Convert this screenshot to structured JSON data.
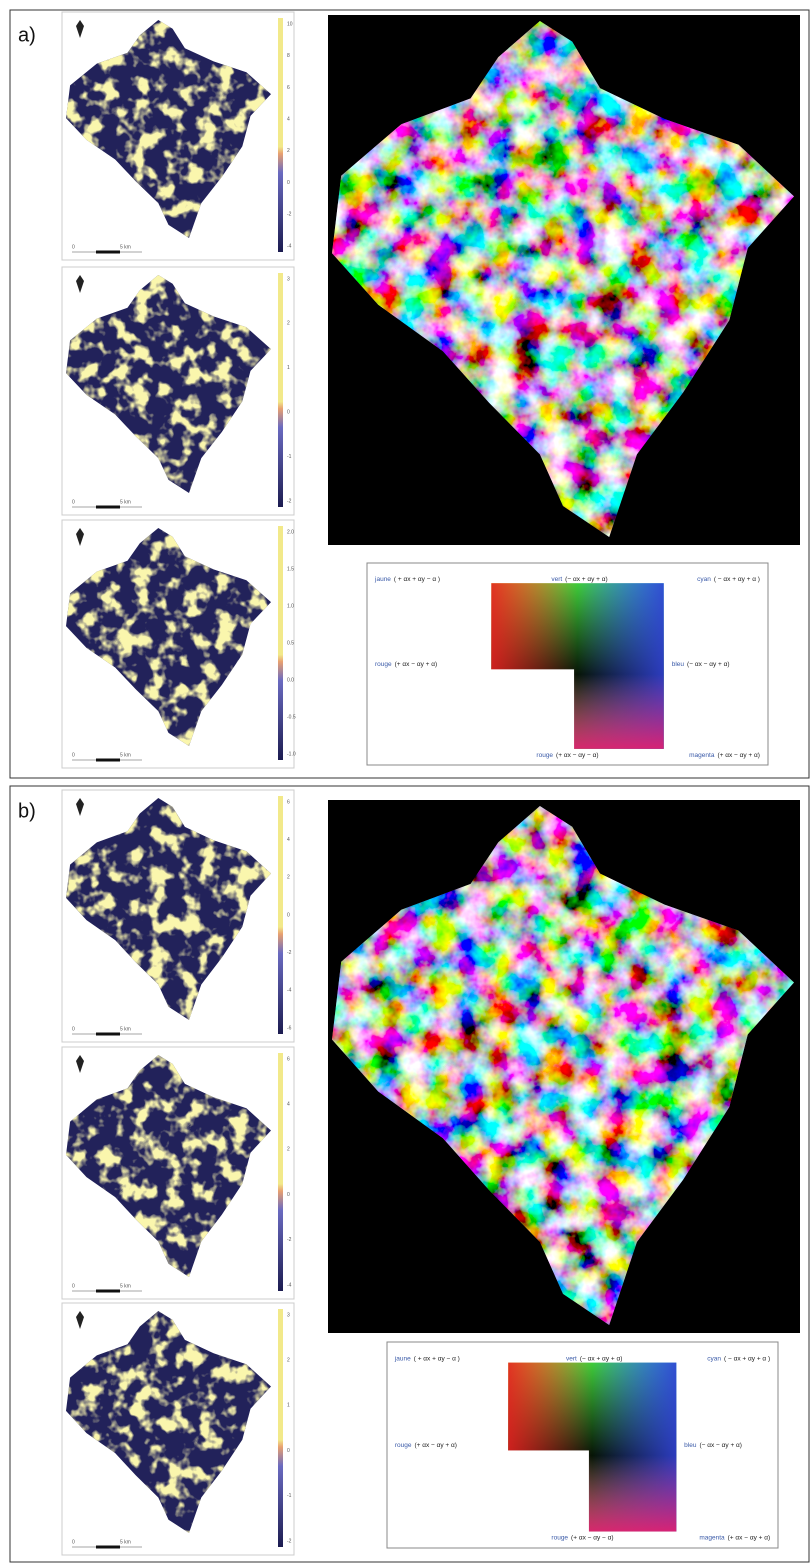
{
  "panels": [
    {
      "label": "a)",
      "maps": [
        {
          "ticks": [
            "10",
            "8",
            "6",
            "4",
            "2",
            "0",
            "-2",
            "-4"
          ],
          "scale": [
            "0",
            "5 km"
          ]
        },
        {
          "ticks": [
            "3",
            "2",
            "1",
            "0",
            "-1",
            "-2"
          ],
          "scale": [
            "0",
            "5 km"
          ]
        },
        {
          "ticks": [
            "2.0",
            "1.5",
            "1.0",
            "0.5",
            "0.0",
            "-0.5",
            "-1.0"
          ],
          "scale": [
            "0",
            "5 km"
          ]
        }
      ],
      "legend": [
        {
          "name": "jaune",
          "formula": "( + αx + αy − α )"
        },
        {
          "name": "vert",
          "formula": "(− αx + αy + α)"
        },
        {
          "name": "cyan",
          "formula": "( − αx + αy + α )"
        },
        {
          "name": "rouge",
          "formula": "(+ αx − αy + α)"
        },
        {
          "name": "bleu",
          "formula": "(− αx − αy + α)"
        },
        {
          "name": "rouge",
          "formula": "(+ αx − αy − α)"
        },
        {
          "name": "magenta",
          "formula": "(+ αx − αy + α)"
        }
      ]
    },
    {
      "label": "b)",
      "maps": [
        {
          "ticks": [
            "6",
            "4",
            "2",
            "0",
            "-2",
            "-4",
            "-6"
          ],
          "scale": [
            "0",
            "5 km"
          ]
        },
        {
          "ticks": [
            "6",
            "4",
            "2",
            "0",
            "-2",
            "-4"
          ],
          "scale": [
            "0",
            "5 km"
          ]
        },
        {
          "ticks": [
            "3",
            "2",
            "1",
            "0",
            "-1",
            "-2"
          ],
          "scale": [
            "0",
            "5 km"
          ]
        }
      ],
      "legend": [
        {
          "name": "jaune",
          "formula": "( + αx + αy − α )"
        },
        {
          "name": "vert",
          "formula": "(− αx + αy + α)"
        },
        {
          "name": "cyan",
          "formula": "( − αx + αy + α )"
        },
        {
          "name": "rouge",
          "formula": "(+ αx − αy + α)"
        },
        {
          "name": "bleu",
          "formula": "(− αx − αy + α)"
        },
        {
          "name": "rouge",
          "formula": "(+ αx − αy − α)"
        },
        {
          "name": "magenta",
          "formula": "(+ αx − αy + α)"
        }
      ]
    }
  ]
}
